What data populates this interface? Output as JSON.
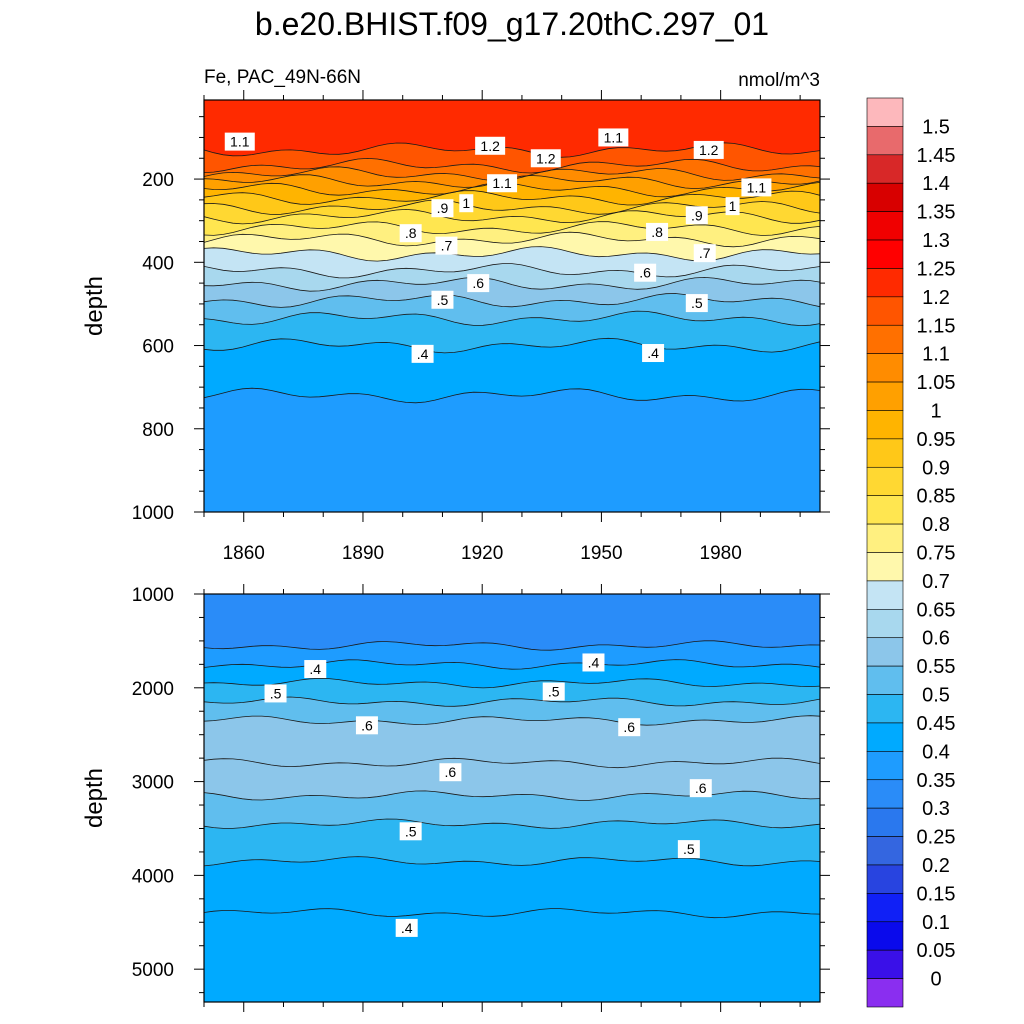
{
  "title": "b.e20.BHIST.f09_g17.20thC.297_01",
  "chart_data": [
    {
      "type": "heatmap",
      "subtype": "depth-time contour",
      "variable_label": "Fe, PAC_49N-66N",
      "units": "nmol/m^3",
      "xlabel": "",
      "ylabel": "depth",
      "xlim": [
        1850,
        2005
      ],
      "ylim": [
        1000,
        10
      ],
      "x_ticks": [
        1860,
        1890,
        1920,
        1950,
        1980
      ],
      "x_tick_labels": [
        "1860",
        "1890",
        "1920",
        "1950",
        "1980"
      ],
      "y_ticks": [
        200,
        400,
        600,
        800,
        1000
      ],
      "y_tick_labels": [
        "200",
        "400",
        "600",
        "800",
        "1000"
      ],
      "isolines": [
        {
          "level": 1.2,
          "depth": 130
        },
        {
          "level": 1.15,
          "depth": 168
        },
        {
          "level": 1.1,
          "depth": 188
        },
        {
          "level": 1.05,
          "depth": 206
        },
        {
          "level": 1.0,
          "depth": 225
        },
        {
          "level": 0.95,
          "depth": 245
        },
        {
          "level": 0.9,
          "depth": 268
        },
        {
          "level": 0.85,
          "depth": 290
        },
        {
          "level": 0.8,
          "depth": 318
        },
        {
          "level": 0.75,
          "depth": 345
        },
        {
          "level": 0.7,
          "depth": 380
        },
        {
          "level": 0.65,
          "depth": 420
        },
        {
          "level": 0.6,
          "depth": 452
        },
        {
          "level": 0.55,
          "depth": 492
        },
        {
          "level": 0.5,
          "depth": 535
        },
        {
          "level": 0.45,
          "depth": 600
        },
        {
          "level": 0.4,
          "depth": 720
        }
      ],
      "contour_labels": [
        {
          "text": "1.1",
          "x": 1859,
          "depth": 110
        },
        {
          "text": "1.2",
          "x": 1922,
          "depth": 120
        },
        {
          "text": "1.2",
          "x": 1936,
          "depth": 150
        },
        {
          "text": "1.1",
          "x": 1953,
          "depth": 100
        },
        {
          "text": "1.2",
          "x": 1977,
          "depth": 130
        },
        {
          "text": "1.1",
          "x": 1925,
          "depth": 210
        },
        {
          "text": "1.1",
          "x": 1989,
          "depth": 220
        },
        {
          "text": ".9",
          "x": 1910,
          "depth": 270
        },
        {
          "text": "1",
          "x": 1916,
          "depth": 258
        },
        {
          "text": ".9",
          "x": 1974,
          "depth": 287
        },
        {
          "text": "1",
          "x": 1983,
          "depth": 265
        },
        {
          "text": ".8",
          "x": 1902,
          "depth": 330
        },
        {
          "text": ".8",
          "x": 1964,
          "depth": 327
        },
        {
          "text": ".7",
          "x": 1911,
          "depth": 360
        },
        {
          "text": ".7",
          "x": 1976,
          "depth": 378
        },
        {
          "text": ".6",
          "x": 1919,
          "depth": 450
        },
        {
          "text": ".6",
          "x": 1961,
          "depth": 425
        },
        {
          "text": ".5",
          "x": 1910,
          "depth": 490
        },
        {
          "text": ".5",
          "x": 1974,
          "depth": 498
        },
        {
          "text": ".4",
          "x": 1905,
          "depth": 620
        },
        {
          "text": ".4",
          "x": 1963,
          "depth": 618
        }
      ]
    },
    {
      "type": "heatmap",
      "subtype": "depth-time contour",
      "xlabel": "",
      "ylabel": "depth",
      "xlim": [
        1850,
        2005
      ],
      "ylim": [
        5350,
        1000
      ],
      "y_ticks": [
        1000,
        2000,
        3000,
        4000,
        5000
      ],
      "y_tick_labels": [
        "1000",
        "2000",
        "3000",
        "4000",
        "5000"
      ],
      "isolines": [
        {
          "level": 0.35,
          "depth": 1550
        },
        {
          "level": 0.4,
          "depth": 1750
        },
        {
          "level": 0.45,
          "depth": 1950
        },
        {
          "level": 0.5,
          "depth": 2150
        },
        {
          "level": 0.55,
          "depth": 2350
        },
        {
          "level": 0.6,
          "depth": 2800
        },
        {
          "level": 0.55,
          "depth": 3150
        },
        {
          "level": 0.5,
          "depth": 3450
        },
        {
          "level": 0.45,
          "depth": 3850
        },
        {
          "level": 0.4,
          "depth": 4400
        }
      ],
      "contour_labels": [
        {
          "text": ".4",
          "x": 1878,
          "depth": 1800
        },
        {
          "text": ".4",
          "x": 1948,
          "depth": 1730
        },
        {
          "text": ".5",
          "x": 1868,
          "depth": 2060
        },
        {
          "text": ".5",
          "x": 1938,
          "depth": 2040
        },
        {
          "text": ".6",
          "x": 1891,
          "depth": 2400
        },
        {
          "text": ".6",
          "x": 1957,
          "depth": 2420
        },
        {
          "text": ".6",
          "x": 1912,
          "depth": 2900
        },
        {
          "text": ".6",
          "x": 1975,
          "depth": 3070
        },
        {
          "text": ".5",
          "x": 1902,
          "depth": 3530
        },
        {
          "text": ".5",
          "x": 1972,
          "depth": 3720
        },
        {
          "text": ".4",
          "x": 1901,
          "depth": 4560
        }
      ]
    }
  ],
  "colorbar": {
    "levels": [
      "1.5",
      "1.45",
      "1.4",
      "1.35",
      "1.3",
      "1.25",
      "1.2",
      "1.15",
      "1.1",
      "1.05",
      "1",
      "0.95",
      "0.9",
      "0.85",
      "0.8",
      "0.75",
      "0.7",
      "0.65",
      "0.6",
      "0.55",
      "0.5",
      "0.45",
      "0.4",
      "0.35",
      "0.3",
      "0.25",
      "0.2",
      "0.15",
      "0.1",
      "0.05",
      "0"
    ],
    "colors": [
      "#fdb8bc",
      "#e86a6c",
      "#d82828",
      "#d80000",
      "#f00000",
      "#ff0000",
      "#ff2a00",
      "#ff5500",
      "#ff7000",
      "#ff8c00",
      "#ffa000",
      "#ffb400",
      "#ffc818",
      "#ffd832",
      "#ffe650",
      "#fff080",
      "#fff8ac",
      "#c4e4f4",
      "#a8d8ee",
      "#8cc6ea",
      "#60beee",
      "#2cb6f2",
      "#00aaff",
      "#1e9cff",
      "#2a8cf8",
      "#2a78ee",
      "#3466e0",
      "#2844e0",
      "#1020f6",
      "#0a0aec",
      "#3a10e8",
      "#8a2ef0"
    ]
  }
}
